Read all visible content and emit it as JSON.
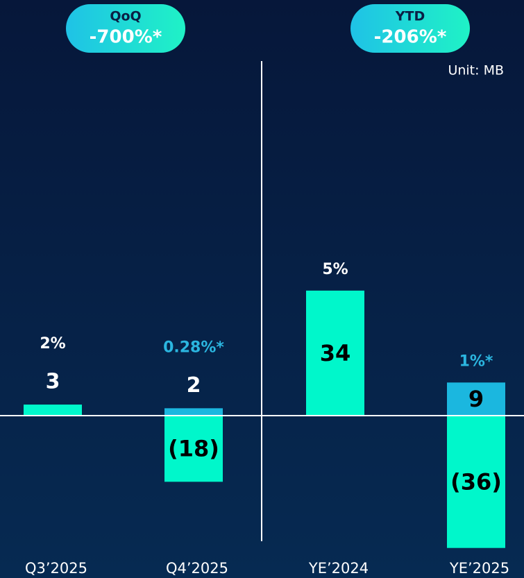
{
  "chart_data": {
    "type": "bar",
    "unit_label": "Unit: MB",
    "panels": [
      {
        "label": "QoQ",
        "value": "-700%*"
      },
      {
        "label": "YTD",
        "value": "-206%*"
      }
    ],
    "categories": [
      "Q3’2025",
      "Q4’2025",
      "YE’2024",
      "YE’2025"
    ],
    "series": [
      {
        "color": "#00f7cb",
        "values": [
          3,
          -18,
          34,
          -36
        ],
        "value_labels": [
          "3",
          "(18)",
          "34",
          "(36)"
        ]
      },
      {
        "color": "#1bb7df",
        "values": [
          null,
          2,
          null,
          9
        ],
        "value_labels": [
          null,
          "2",
          null,
          "9"
        ]
      }
    ],
    "annotations": [
      {
        "text": "2%",
        "color": "#ffffff"
      },
      {
        "text": "0.28%*",
        "color": "#2bb6e0"
      },
      {
        "text": "5%",
        "color": "#ffffff"
      },
      {
        "text": "1%*",
        "color": "#2bb6e0"
      }
    ],
    "ylim": [
      -37,
      97
    ]
  }
}
